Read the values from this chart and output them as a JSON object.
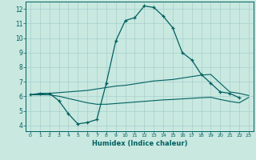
{
  "xlabel": "Humidex (Indice chaleur)",
  "background_color": "#c8e8e0",
  "grid_color": "#a8d0cc",
  "line_color": "#006060",
  "xlim": [
    -0.5,
    23.5
  ],
  "ylim": [
    3.6,
    12.5
  ],
  "line1_x": [
    0,
    1,
    2,
    3,
    4,
    5,
    6,
    7,
    8,
    9,
    10,
    11,
    12,
    13,
    14,
    15,
    16,
    17,
    18,
    19,
    20,
    21,
    22
  ],
  "line1_y": [
    6.1,
    6.2,
    6.2,
    5.7,
    4.8,
    4.1,
    4.2,
    4.4,
    6.9,
    9.8,
    11.2,
    11.4,
    12.2,
    12.1,
    11.5,
    10.7,
    9.0,
    8.5,
    7.5,
    6.9,
    6.3,
    6.2,
    5.9
  ],
  "line2_x": [
    0,
    1,
    2,
    3,
    4,
    5,
    6,
    7,
    8,
    9,
    10,
    11,
    12,
    13,
    14,
    15,
    16,
    17,
    18,
    19,
    20,
    21,
    22,
    23
  ],
  "line2_y": [
    6.1,
    6.15,
    6.2,
    6.25,
    6.3,
    6.35,
    6.4,
    6.5,
    6.6,
    6.7,
    6.75,
    6.85,
    6.95,
    7.05,
    7.1,
    7.15,
    7.25,
    7.35,
    7.45,
    7.5,
    6.9,
    6.3,
    6.2,
    6.05
  ],
  "line3_x": [
    0,
    1,
    2,
    3,
    4,
    5,
    6,
    7,
    8,
    9,
    10,
    11,
    12,
    13,
    14,
    15,
    16,
    17,
    18,
    19,
    20,
    21,
    22,
    23
  ],
  "line3_y": [
    6.1,
    6.1,
    6.1,
    6.0,
    5.85,
    5.7,
    5.55,
    5.45,
    5.45,
    5.5,
    5.55,
    5.6,
    5.65,
    5.7,
    5.75,
    5.78,
    5.82,
    5.86,
    5.9,
    5.93,
    5.78,
    5.65,
    5.55,
    5.92
  ]
}
